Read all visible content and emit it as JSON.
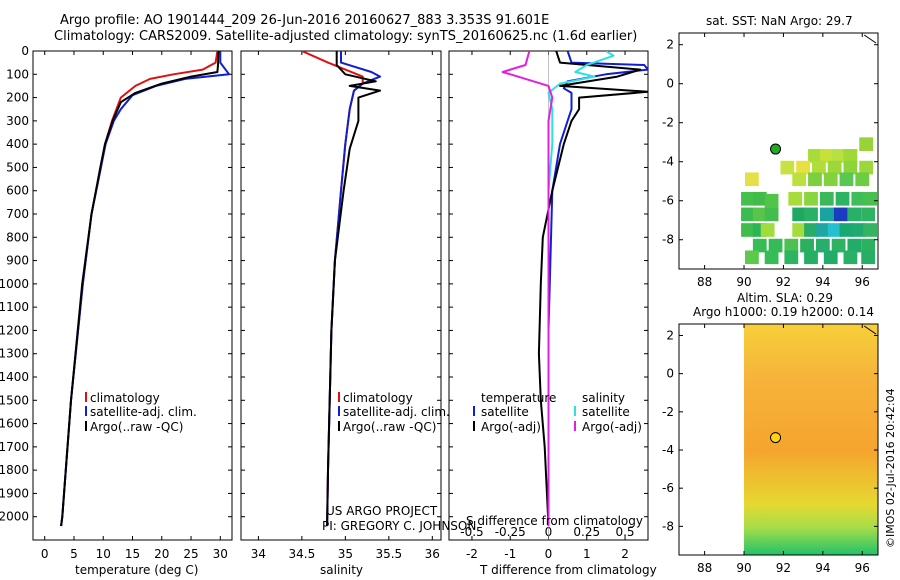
{
  "title_line1": "Argo profile: AO 1901444_209 26-Jun-2016 20160627_883 3.353S 91.601E",
  "title_line2": "Climatology: CARS2009. Satellite-adjusted climatology: synTS_20160625.nc (1.6d earlier)",
  "timestamp": "©IMOS 02-Jul-2016 20:42:04",
  "project_line1": "US ARGO PROJECT",
  "project_line2": "PI: GREGORY C. JOHNSON",
  "colors": {
    "clim": "#e01010",
    "sat": "#1020d0",
    "argo": "#000000",
    "sat_s": "#30e0e0",
    "argo_s": "#e020e0"
  },
  "chart_data": [
    {
      "type": "line",
      "id": "temperature",
      "xlabel": "temperature (deg C)",
      "ylabel": "",
      "xlim": [
        -2,
        32
      ],
      "ylim": [
        2100,
        0
      ],
      "xticks": [
        0,
        5,
        10,
        15,
        20,
        25,
        30
      ],
      "yticks": [
        0,
        100,
        200,
        300,
        400,
        500,
        600,
        700,
        800,
        900,
        1000,
        1100,
        1200,
        1300,
        1400,
        1500,
        1600,
        1700,
        1800,
        1900,
        2000
      ],
      "legend": [
        "climatology",
        "satellite-adj. clim.",
        "Argo(..raw -QC)"
      ],
      "series": [
        {
          "name": "climatology",
          "color": "clim",
          "depth": [
            0,
            50,
            80,
            100,
            120,
            150,
            200,
            300,
            400,
            500,
            700,
            1000,
            1500,
            2000,
            2040
          ],
          "values": [
            29.5,
            29.2,
            27,
            22,
            18,
            15.5,
            13,
            11.5,
            10.3,
            9.6,
            8,
            6.5,
            4.5,
            3.0,
            2.8
          ]
        },
        {
          "name": "satellite-adj. clim.",
          "color": "sat",
          "depth": [
            0,
            50,
            100,
            120,
            150,
            190,
            250,
            300,
            400,
            500,
            700,
            1000,
            1500,
            2000,
            2040
          ],
          "values": [
            30,
            30,
            31.5,
            24,
            19,
            15,
            13,
            11.8,
            10.4,
            9.6,
            8,
            6.5,
            4.5,
            3.0,
            2.8
          ]
        },
        {
          "name": "Argo(..raw -QC)",
          "color": "argo",
          "depth": [
            0,
            60,
            90,
            110,
            140,
            180,
            220,
            300,
            400,
            500,
            700,
            1000,
            1500,
            2000,
            2040
          ],
          "values": [
            29.7,
            29.6,
            29.5,
            25,
            20,
            15.5,
            13,
            11.6,
            10.3,
            9.5,
            8,
            6.4,
            4.5,
            3.0,
            2.8
          ]
        }
      ]
    },
    {
      "type": "line",
      "id": "salinity",
      "xlabel": "salinity",
      "ylabel": "",
      "xlim": [
        33.8,
        36.1
      ],
      "ylim": [
        2100,
        0
      ],
      "xticks": [
        34,
        34.5,
        35,
        35.5,
        36
      ],
      "legend": [
        "climatology",
        "satellite-adj. clim.",
        "Argo(..raw -QC)"
      ],
      "series": [
        {
          "name": "climatology",
          "color": "clim",
          "depth": [
            0,
            50,
            80,
            110,
            140,
            170,
            250,
            400,
            600,
            900,
            1200,
            1500,
            1800,
            2040
          ],
          "values": [
            34.5,
            34.8,
            35.0,
            35.2,
            35.2,
            35.1,
            35.05,
            35.0,
            34.95,
            34.88,
            34.84,
            34.82,
            34.8,
            34.79
          ]
        },
        {
          "name": "satellite-adj. clim.",
          "color": "sat",
          "depth": [
            0,
            50,
            90,
            110,
            140,
            170,
            250,
            400,
            600,
            900,
            1200,
            1500,
            1800,
            2040
          ],
          "values": [
            34.95,
            34.95,
            35.3,
            35.4,
            35.2,
            35.1,
            35.05,
            35.0,
            34.95,
            34.88,
            34.84,
            34.82,
            34.8,
            34.79
          ]
        },
        {
          "name": "Argo(..raw -QC)",
          "color": "argo",
          "depth": [
            0,
            60,
            100,
            130,
            150,
            170,
            200,
            300,
            420,
            600,
            900,
            1200,
            1500,
            1800,
            2040
          ],
          "values": [
            34.9,
            34.9,
            35.0,
            35.35,
            35.05,
            35.4,
            35.15,
            35.15,
            35.05,
            34.98,
            34.88,
            34.84,
            34.82,
            34.8,
            34.79
          ]
        }
      ]
    },
    {
      "type": "line",
      "id": "difference",
      "xlabel": "T difference from climatology",
      "xlabel2": "S difference from climatology",
      "xlim": [
        -2.6,
        2.6
      ],
      "ylim": [
        2100,
        0
      ],
      "xticks": [
        -2,
        -1,
        0,
        1,
        2
      ],
      "xticks2_labels": [
        "-0.5",
        "-0.25",
        "0",
        "0.25",
        "0.5"
      ],
      "xticks2_pos": [
        -2,
        -1,
        0,
        1,
        2
      ],
      "legend_temperature_title": "temperature",
      "legend_salinity_title": "salinity",
      "legend_temperature": [
        "satellite",
        "Argo(-adj)"
      ],
      "legend_salinity": [
        "satellite",
        "Argo(-adj)"
      ],
      "series": [
        {
          "name": "T satellite",
          "color": "sat",
          "depth": [
            0,
            50,
            60,
            80,
            100,
            130,
            160,
            180,
            250,
            300,
            400,
            600,
            900,
            1200,
            1600,
            2040
          ],
          "values": [
            0.5,
            0.6,
            2.5,
            2.6,
            1.5,
            0.5,
            0.4,
            0.6,
            0.6,
            0.5,
            0.3,
            0.1,
            0.05,
            0.0,
            0.0,
            0.0
          ]
        },
        {
          "name": "T Argo(-adj)",
          "color": "argo",
          "depth": [
            0,
            50,
            80,
            110,
            150,
            175,
            200,
            250,
            300,
            400,
            600,
            800,
            1000,
            1300,
            1500,
            1700,
            2040
          ],
          "values": [
            0.2,
            0.3,
            2.4,
            1.8,
            0.3,
            2.6,
            0.8,
            0.8,
            0.6,
            0.4,
            0.1,
            -0.15,
            -0.2,
            -0.25,
            -0.2,
            -0.1,
            0.0
          ]
        },
        {
          "name": "S satellite",
          "color": "sat_s",
          "depth": [
            0,
            20,
            60,
            90,
            110,
            140,
            180,
            250,
            400,
            600,
            900,
            1200,
            1600,
            2040
          ],
          "values": [
            1.5,
            1.7,
            1.0,
            0.7,
            1.2,
            0.3,
            0.0,
            0.1,
            0.1,
            0.0,
            0.0,
            0.0,
            0.0,
            0.0
          ]
        },
        {
          "name": "S Argo(-adj)",
          "color": "argo_s",
          "depth": [
            0,
            60,
            90,
            110,
            150,
            200,
            300,
            500,
            800,
            1100,
            1500,
            2040
          ],
          "values": [
            -0.5,
            -0.6,
            -1.2,
            -0.8,
            0.0,
            0.1,
            0.0,
            0.0,
            0.0,
            0.0,
            0.0,
            0.0
          ]
        }
      ]
    },
    {
      "type": "heatmap",
      "id": "sst_map",
      "title": "sat. SST: NaN Argo: 29.7",
      "xlim": [
        86.7,
        96.8
      ],
      "ylim": [
        -9.5,
        2.6
      ],
      "xticks": [
        88,
        90,
        92,
        94,
        96
      ],
      "yticks": [
        -8,
        -6,
        -4,
        -2,
        0,
        2
      ],
      "marker": {
        "lon": 91.6,
        "lat": -3.35,
        "color": "#22aa22"
      }
    },
    {
      "type": "heatmap",
      "id": "sla_map",
      "title": "Altim. SLA: 0.29",
      "subtitle": "Argo h1000: 0.19 h2000: 0.14",
      "xlim": [
        86.7,
        96.8
      ],
      "ylim": [
        -9.5,
        2.6
      ],
      "xticks": [
        88,
        90,
        92,
        94,
        96
      ],
      "yticks": [
        -8,
        -6,
        -4,
        -2,
        0,
        2
      ],
      "marker": {
        "lon": 91.6,
        "lat": -3.35,
        "color": "#ffd21a"
      }
    }
  ]
}
